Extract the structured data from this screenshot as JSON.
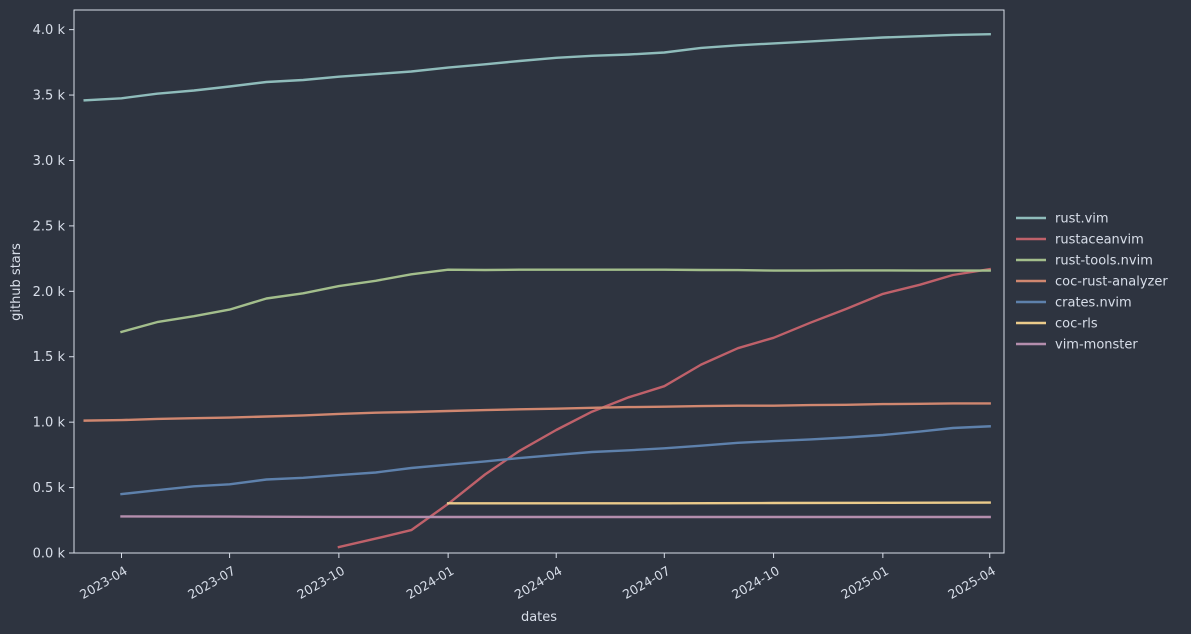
{
  "chart_data": {
    "type": "line",
    "title": "",
    "xlabel": "dates",
    "ylabel": "github stars",
    "x_range": [
      "2023-02-20",
      "2025-04-13"
    ],
    "ylim": [
      0,
      4150
    ],
    "x_ticks": [
      {
        "date": "2023-04-01",
        "label": "2023-04"
      },
      {
        "date": "2023-07-01",
        "label": "2023-07"
      },
      {
        "date": "2023-10-01",
        "label": "2023-10"
      },
      {
        "date": "2024-01-01",
        "label": "2024-01"
      },
      {
        "date": "2024-04-01",
        "label": "2024-04"
      },
      {
        "date": "2024-07-01",
        "label": "2024-07"
      },
      {
        "date": "2024-10-01",
        "label": "2024-10"
      },
      {
        "date": "2025-01-01",
        "label": "2025-01"
      },
      {
        "date": "2025-04-01",
        "label": "2025-04"
      }
    ],
    "y_ticks": [
      {
        "value": 0,
        "label": "0.0 k"
      },
      {
        "value": 500,
        "label": "0.5 k"
      },
      {
        "value": 1000,
        "label": "1.0 k"
      },
      {
        "value": 1500,
        "label": "1.5 k"
      },
      {
        "value": 2000,
        "label": "2.0 k"
      },
      {
        "value": 2500,
        "label": "2.5 k"
      },
      {
        "value": 3000,
        "label": "3.0 k"
      },
      {
        "value": 3500,
        "label": "3.5 k"
      },
      {
        "value": 4000,
        "label": "4.0 k"
      }
    ],
    "grid": false,
    "legend": "outside-right",
    "series": [
      {
        "name": "rust.vim",
        "color": "#8fbcbb",
        "points": [
          [
            "2023-03-01",
            3460
          ],
          [
            "2023-04-01",
            3475
          ],
          [
            "2023-05-01",
            3510
          ],
          [
            "2023-06-01",
            3535
          ],
          [
            "2023-07-01",
            3565
          ],
          [
            "2023-08-01",
            3600
          ],
          [
            "2023-09-01",
            3615
          ],
          [
            "2023-10-01",
            3640
          ],
          [
            "2023-11-01",
            3660
          ],
          [
            "2023-12-01",
            3680
          ],
          [
            "2024-01-01",
            3710
          ],
          [
            "2024-02-01",
            3735
          ],
          [
            "2024-03-01",
            3760
          ],
          [
            "2024-04-01",
            3785
          ],
          [
            "2024-05-01",
            3800
          ],
          [
            "2024-06-01",
            3810
          ],
          [
            "2024-07-01",
            3825
          ],
          [
            "2024-08-01",
            3860
          ],
          [
            "2024-09-01",
            3880
          ],
          [
            "2024-10-01",
            3895
          ],
          [
            "2024-11-01",
            3910
          ],
          [
            "2024-12-01",
            3925
          ],
          [
            "2025-01-01",
            3940
          ],
          [
            "2025-02-01",
            3950
          ],
          [
            "2025-03-01",
            3960
          ],
          [
            "2025-04-01",
            3965
          ]
        ]
      },
      {
        "name": "rustaceanvim",
        "color": "#bf616a",
        "points": [
          [
            "2023-10-01",
            45
          ],
          [
            "2023-11-01",
            110
          ],
          [
            "2023-12-01",
            175
          ],
          [
            "2024-01-01",
            375
          ],
          [
            "2024-02-01",
            600
          ],
          [
            "2024-03-01",
            780
          ],
          [
            "2024-04-01",
            940
          ],
          [
            "2024-05-01",
            1080
          ],
          [
            "2024-06-01",
            1190
          ],
          [
            "2024-07-01",
            1275
          ],
          [
            "2024-08-01",
            1440
          ],
          [
            "2024-09-01",
            1565
          ],
          [
            "2024-10-01",
            1645
          ],
          [
            "2024-11-01",
            1760
          ],
          [
            "2024-12-01",
            1865
          ],
          [
            "2025-01-01",
            1980
          ],
          [
            "2025-02-01",
            2050
          ],
          [
            "2025-03-01",
            2125
          ],
          [
            "2025-04-01",
            2170
          ]
        ]
      },
      {
        "name": "rust-tools.nvim",
        "color": "#a3be8c",
        "points": [
          [
            "2023-04-01",
            1690
          ],
          [
            "2023-05-01",
            1765
          ],
          [
            "2023-06-01",
            1810
          ],
          [
            "2023-07-01",
            1860
          ],
          [
            "2023-08-01",
            1945
          ],
          [
            "2023-09-01",
            1985
          ],
          [
            "2023-10-01",
            2040
          ],
          [
            "2023-11-01",
            2080
          ],
          [
            "2023-12-01",
            2130
          ],
          [
            "2024-01-01",
            2165
          ],
          [
            "2024-02-01",
            2163
          ],
          [
            "2024-03-01",
            2165
          ],
          [
            "2024-04-01",
            2165
          ],
          [
            "2024-05-01",
            2165
          ],
          [
            "2024-06-01",
            2165
          ],
          [
            "2024-07-01",
            2165
          ],
          [
            "2024-08-01",
            2163
          ],
          [
            "2024-09-01",
            2162
          ],
          [
            "2024-10-01",
            2158
          ],
          [
            "2024-11-01",
            2158
          ],
          [
            "2024-12-01",
            2160
          ],
          [
            "2025-01-01",
            2160
          ],
          [
            "2025-02-01",
            2158
          ],
          [
            "2025-03-01",
            2158
          ],
          [
            "2025-04-01",
            2158
          ]
        ]
      },
      {
        "name": "coc-rust-analyzer",
        "color": "#d08770",
        "points": [
          [
            "2023-03-01",
            1012
          ],
          [
            "2023-04-01",
            1016
          ],
          [
            "2023-05-01",
            1025
          ],
          [
            "2023-06-01",
            1030
          ],
          [
            "2023-07-01",
            1035
          ],
          [
            "2023-08-01",
            1043
          ],
          [
            "2023-09-01",
            1052
          ],
          [
            "2023-10-01",
            1063
          ],
          [
            "2023-11-01",
            1072
          ],
          [
            "2023-12-01",
            1078
          ],
          [
            "2024-01-01",
            1085
          ],
          [
            "2024-02-01",
            1092
          ],
          [
            "2024-03-01",
            1098
          ],
          [
            "2024-04-01",
            1103
          ],
          [
            "2024-05-01",
            1110
          ],
          [
            "2024-06-01",
            1115
          ],
          [
            "2024-07-01",
            1118
          ],
          [
            "2024-08-01",
            1123
          ],
          [
            "2024-09-01",
            1126
          ],
          [
            "2024-10-01",
            1126
          ],
          [
            "2024-11-01",
            1130
          ],
          [
            "2024-12-01",
            1133
          ],
          [
            "2025-01-01",
            1138
          ],
          [
            "2025-02-01",
            1140
          ],
          [
            "2025-03-01",
            1143
          ],
          [
            "2025-04-01",
            1143
          ]
        ]
      },
      {
        "name": "crates.nvim",
        "color": "#5e81ac",
        "points": [
          [
            "2023-04-01",
            450
          ],
          [
            "2023-05-01",
            480
          ],
          [
            "2023-06-01",
            510
          ],
          [
            "2023-07-01",
            525
          ],
          [
            "2023-08-01",
            562
          ],
          [
            "2023-09-01",
            575
          ],
          [
            "2023-10-01",
            595
          ],
          [
            "2023-11-01",
            615
          ],
          [
            "2023-12-01",
            650
          ],
          [
            "2024-01-01",
            675
          ],
          [
            "2024-02-01",
            700
          ],
          [
            "2024-03-01",
            725
          ],
          [
            "2024-04-01",
            750
          ],
          [
            "2024-05-01",
            772
          ],
          [
            "2024-06-01",
            785
          ],
          [
            "2024-07-01",
            800
          ],
          [
            "2024-08-01",
            820
          ],
          [
            "2024-09-01",
            842
          ],
          [
            "2024-10-01",
            855
          ],
          [
            "2024-11-01",
            868
          ],
          [
            "2024-12-01",
            883
          ],
          [
            "2025-01-01",
            902
          ],
          [
            "2025-02-01",
            928
          ],
          [
            "2025-03-01",
            955
          ],
          [
            "2025-04-01",
            968
          ]
        ]
      },
      {
        "name": "coc-rls",
        "color": "#ebcb8b",
        "points": [
          [
            "2024-01-01",
            380
          ],
          [
            "2024-04-01",
            380
          ],
          [
            "2024-07-01",
            380
          ],
          [
            "2024-10-01",
            382
          ],
          [
            "2025-01-01",
            384
          ],
          [
            "2025-04-01",
            385
          ]
        ]
      },
      {
        "name": "vim-monster",
        "color": "#b48ead",
        "points": [
          [
            "2023-04-01",
            280
          ],
          [
            "2023-07-01",
            278
          ],
          [
            "2023-10-01",
            276
          ],
          [
            "2024-01-01",
            275
          ],
          [
            "2024-04-01",
            275
          ],
          [
            "2024-07-01",
            275
          ],
          [
            "2024-10-01",
            275
          ],
          [
            "2025-01-01",
            275
          ],
          [
            "2025-04-01",
            275
          ]
        ]
      }
    ]
  }
}
